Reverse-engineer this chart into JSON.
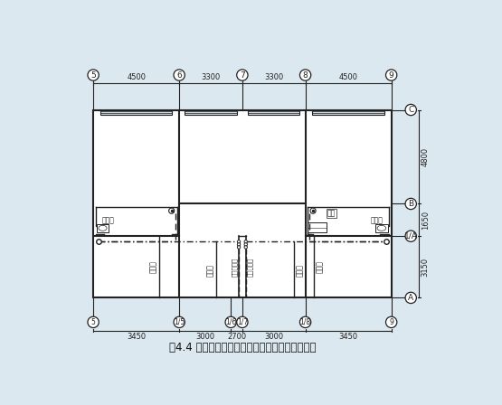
{
  "title": "图4.4 中间单元底层给水、热水、排水工程平面图",
  "title_fontsize": 8.5,
  "bg_color": "#dce8f0",
  "wall_color": "#222222",
  "top_col_labels": [
    "5",
    "6",
    "7",
    "8",
    "9"
  ],
  "bot_col_labels": [
    "5",
    "1/5",
    "1/6",
    "1/7",
    "1/8",
    "9"
  ],
  "row_labels": [
    "C",
    "B",
    "1/A",
    "A"
  ],
  "top_dims": [
    "4500",
    "3300",
    "3300",
    "4500"
  ],
  "right_dims": [
    "4800",
    "1650",
    "3150"
  ],
  "bot_dims": [
    "3450",
    "3000",
    "2700",
    "3000",
    "3450"
  ],
  "label_drain_left": "排水管",
  "label_supply_left": "给水管",
  "label_hot_return": "热水回水管",
  "label_hot_supply": "热水供水管",
  "label_supply_right": "给水管",
  "label_drain_right": "排水管",
  "label_bathroom_left": "卫生间",
  "label_bathroom_right": "卫生间",
  "label_kitchen": "厨房"
}
